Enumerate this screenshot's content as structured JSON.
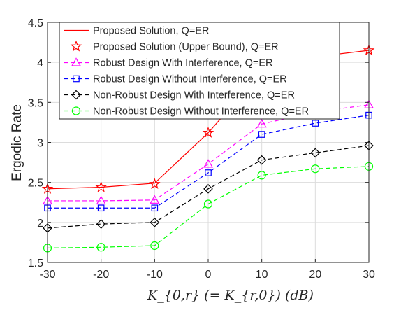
{
  "chart_data": {
    "type": "line",
    "xlabel": "K_{0,r} (= K_{r,0}) (dB)",
    "ylabel": "Ergodic Rate",
    "xlim": [
      -30,
      30
    ],
    "ylim": [
      1.5,
      4.5
    ],
    "xticks": [
      -30,
      -20,
      -10,
      0,
      10,
      20,
      30
    ],
    "xtick_labels": [
      "-30",
      "-20",
      "-10",
      "0",
      "10",
      "20",
      "30"
    ],
    "yticks": [
      1.5,
      2,
      2.5,
      3,
      3.5,
      4,
      4.5
    ],
    "ytick_labels": [
      "1.5",
      "2",
      "2.5",
      "3",
      "3.5",
      "4",
      "4.5"
    ],
    "grid": true,
    "legend_position": "top-right",
    "x": [
      -30,
      -20,
      -10,
      0,
      10,
      20,
      30
    ],
    "series": [
      {
        "name": "Proposed Solution, Q=ER",
        "color": "#ff0000",
        "line": "solid",
        "marker": "none",
        "values": [
          2.42,
          2.44,
          2.49,
          3.12,
          3.88,
          4.07,
          4.15
        ]
      },
      {
        "name": "Proposed Solution (Upper Bound), Q=ER",
        "color": "#ff0000",
        "line": "none",
        "marker": "pentagram",
        "values": [
          2.42,
          2.44,
          2.48,
          3.12,
          3.88,
          4.07,
          4.15
        ]
      },
      {
        "name": "Robust Design With Interference, Q=ER",
        "color": "#ff00ff",
        "line": "dashed",
        "marker": "triangle",
        "values": [
          2.27,
          2.27,
          2.28,
          2.73,
          3.23,
          3.38,
          3.47
        ]
      },
      {
        "name": "Robust Design Without Interference, Q=ER",
        "color": "#0000ff",
        "line": "dashed",
        "marker": "square",
        "values": [
          2.18,
          2.18,
          2.18,
          2.62,
          3.1,
          3.24,
          3.34
        ]
      },
      {
        "name": "Non-Robust Design With Interference, Q=ER",
        "color": "#000000",
        "line": "dashed",
        "marker": "diamond",
        "values": [
          1.93,
          1.98,
          2.0,
          2.42,
          2.78,
          2.87,
          2.96
        ]
      },
      {
        "name": "Non-Robust Design Without Interference, Q=ER",
        "color": "#00ff00",
        "line": "dashed",
        "marker": "circle",
        "values": [
          1.68,
          1.69,
          1.71,
          2.23,
          2.59,
          2.67,
          2.7
        ]
      }
    ]
  }
}
